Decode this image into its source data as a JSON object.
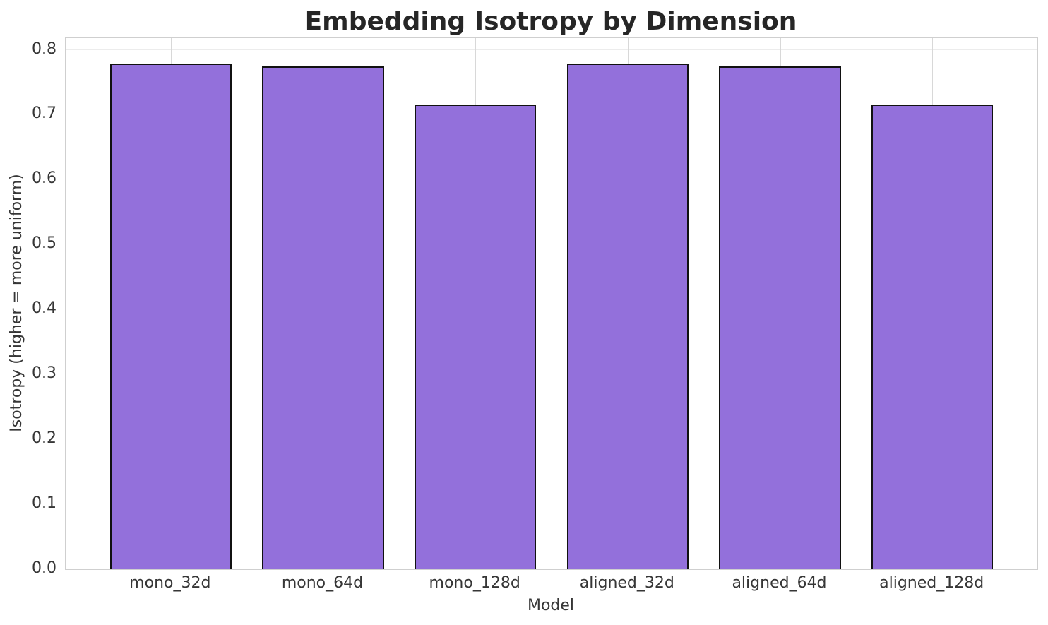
{
  "chart_data": {
    "type": "bar",
    "title": "Embedding Isotropy by Dimension",
    "xlabel": "Model",
    "ylabel": "Isotropy (higher = more uniform)",
    "categories": [
      "mono_32d",
      "mono_64d",
      "mono_128d",
      "aligned_32d",
      "aligned_64d",
      "aligned_128d"
    ],
    "values": [
      0.779,
      0.775,
      0.716,
      0.779,
      0.775,
      0.716
    ],
    "ylim": [
      0,
      0.818
    ],
    "yticks": [
      0.0,
      0.1,
      0.2,
      0.3,
      0.4,
      0.5,
      0.6,
      0.7,
      0.8
    ],
    "ytick_labels": [
      "0.0",
      "0.1",
      "0.2",
      "0.3",
      "0.4",
      "0.5",
      "0.6",
      "0.7",
      "0.8"
    ],
    "grid": "both",
    "legend": "none",
    "colors": {
      "bar_fill": "#9370DB",
      "bar_edge": "#111111",
      "grid_horizontal": "#ececec",
      "grid_vertical": "#d8d8d8",
      "spine": "#cfcfcf",
      "title_text": "#262626",
      "tick_text": "#363636",
      "background": "#ffffff"
    }
  }
}
